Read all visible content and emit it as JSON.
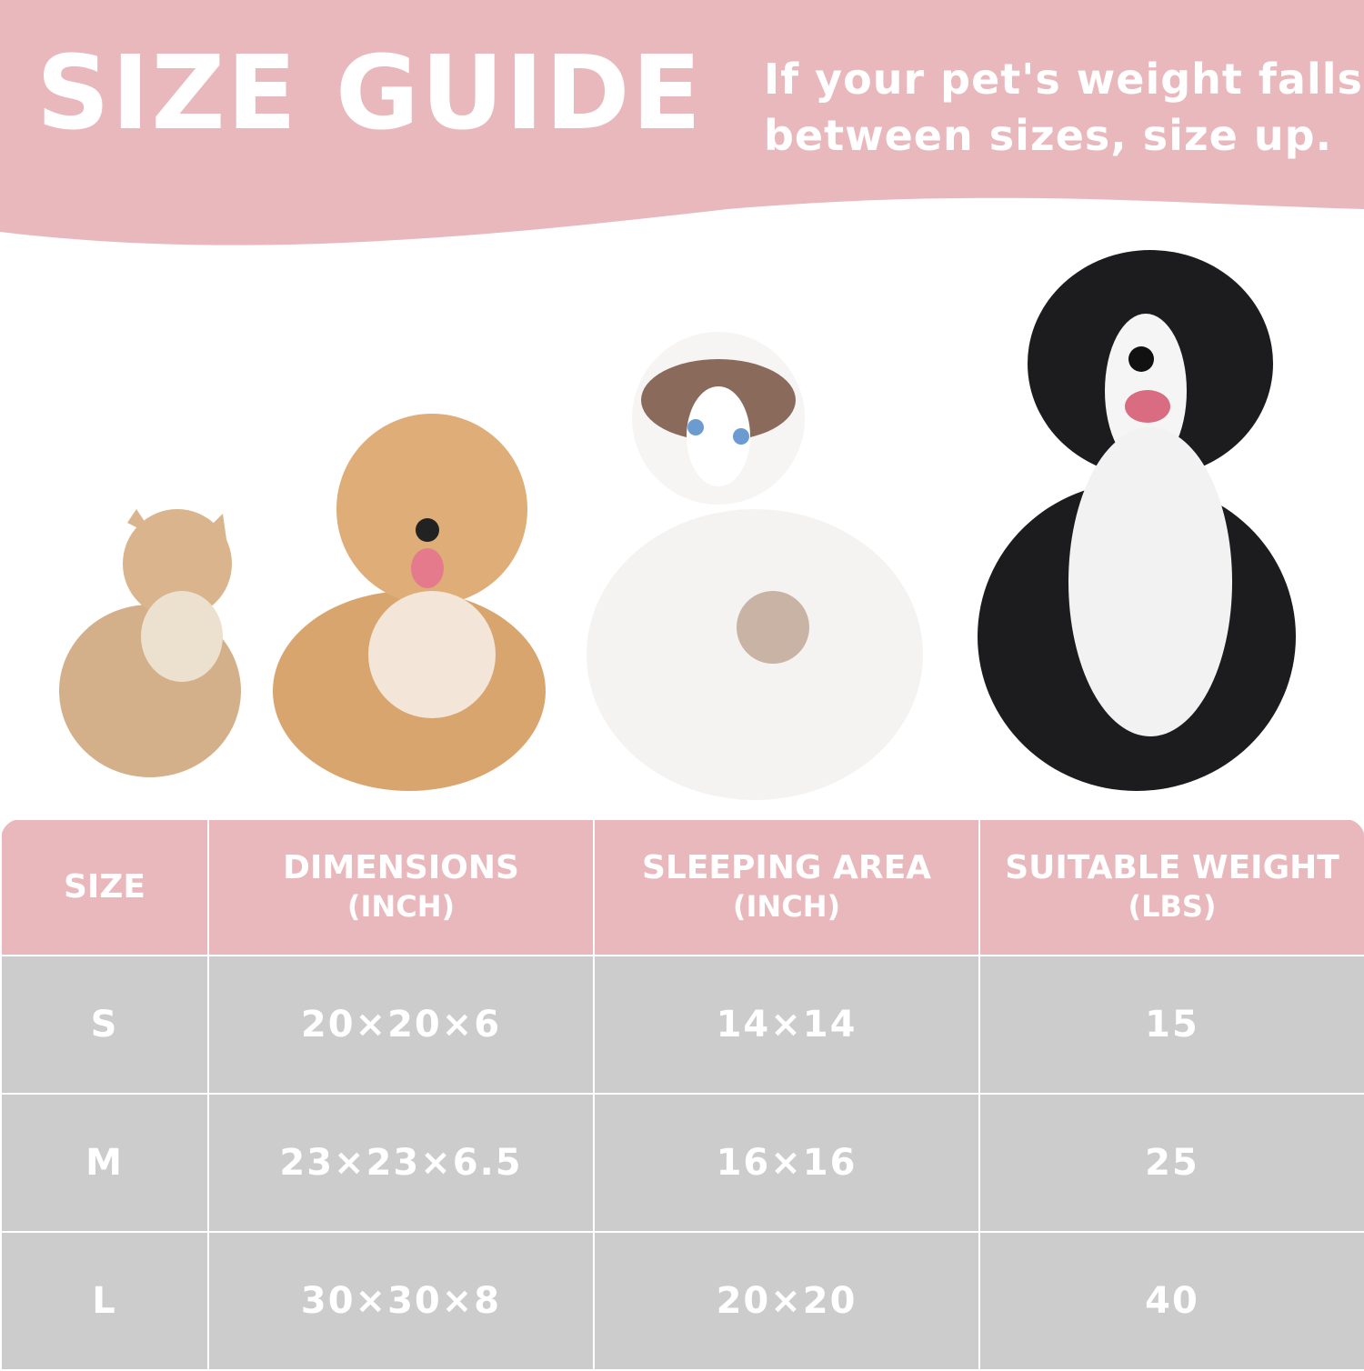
{
  "header": {
    "title": "SIZE GUIDE",
    "tip_line1": "If your pet's weight falls",
    "tip_line2": "between sizes, size up."
  },
  "colors": {
    "accent_pink": "#e9b8bc",
    "row_gray": "#cccccc",
    "text": "#ffffff"
  },
  "pets": [
    "small-cat",
    "small-dog",
    "medium-cat",
    "large-dog"
  ],
  "table": {
    "headers": [
      {
        "title": "SIZE",
        "unit": ""
      },
      {
        "title": "DIMENSIONS",
        "unit": "(INCH)"
      },
      {
        "title": "SLEEPING AREA",
        "unit": "(INCH)"
      },
      {
        "title": "SUITABLE WEIGHT",
        "unit": "(LBS)"
      }
    ],
    "rows": [
      [
        "S",
        "20×20×6",
        "14×14",
        "15"
      ],
      [
        "M",
        "23×23×6.5",
        "16×16",
        "25"
      ],
      [
        "L",
        "30×30×8",
        "20×20",
        "40"
      ]
    ]
  }
}
